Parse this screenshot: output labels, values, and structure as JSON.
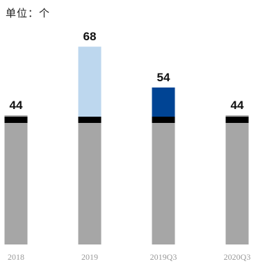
{
  "unit_label": "单位：个",
  "chart_data": {
    "type": "bar",
    "categories": [
      "2018",
      "2019",
      "2019Q3",
      "2020Q3"
    ],
    "values": [
      44,
      68,
      54,
      44
    ],
    "colors": [
      "#a6a6a6",
      "#bdd7ee",
      "#004494",
      "#a6a6a6"
    ],
    "base_color": "#a6a6a6",
    "band_color": "#000000",
    "title": "",
    "xlabel": "",
    "ylabel": ""
  }
}
